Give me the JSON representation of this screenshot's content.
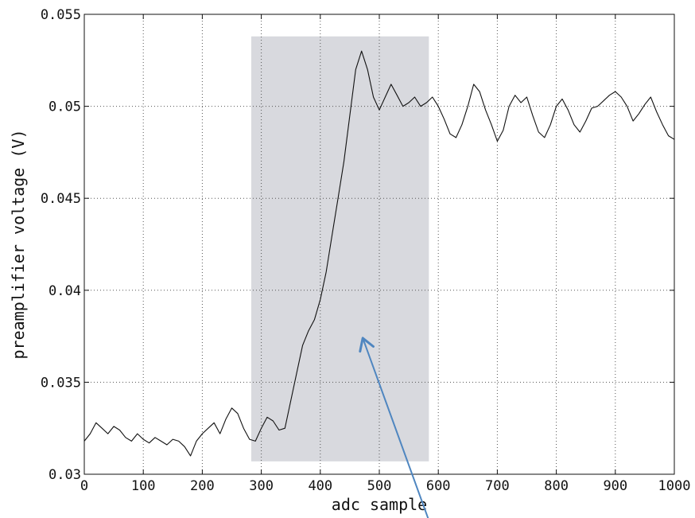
{
  "chart_data": {
    "type": "line",
    "title": "",
    "xlabel": "adc sample",
    "ylabel": "preamplifier voltage (V)",
    "xlim": [
      0,
      1000
    ],
    "ylim": [
      0.03,
      0.055
    ],
    "x_ticks": [
      0,
      100,
      200,
      300,
      400,
      500,
      600,
      700,
      800,
      900,
      1000
    ],
    "x_tick_labels": [
      "0",
      "100",
      "200",
      "300",
      "400",
      "500",
      "600",
      "700",
      "800",
      "900",
      "1000"
    ],
    "y_ticks": [
      0.03,
      0.035,
      0.04,
      0.045,
      0.05,
      0.055
    ],
    "y_tick_labels": [
      "0.03",
      "0.035",
      "0.04",
      "0.045",
      "0.05",
      "0.055"
    ],
    "grid": true,
    "grid_style": "dotted",
    "line_color": "#111111",
    "series": [
      {
        "x": [
          0,
          10,
          20,
          30,
          40,
          50,
          60,
          70,
          80,
          90,
          100,
          110,
          120,
          130,
          140,
          150,
          160,
          170,
          180,
          190,
          200,
          210,
          220,
          230,
          240,
          250,
          260,
          270,
          280,
          290,
          300,
          310,
          320,
          330,
          340,
          350,
          360,
          370,
          380,
          390,
          400,
          410,
          420,
          430,
          440,
          450,
          460,
          470,
          480,
          490,
          500,
          510,
          520,
          530,
          540,
          550,
          560,
          570,
          580,
          590,
          600,
          610,
          620,
          630,
          640,
          650,
          660,
          670,
          680,
          690,
          700,
          710,
          720,
          730,
          740,
          750,
          760,
          770,
          780,
          790,
          800,
          810,
          820,
          830,
          840,
          850,
          860,
          870,
          880,
          890,
          900,
          910,
          920,
          930,
          940,
          950,
          960,
          970,
          980,
          990,
          1000
        ],
        "y": [
          0.0318,
          0.0322,
          0.0328,
          0.0325,
          0.0322,
          0.0326,
          0.0324,
          0.032,
          0.0318,
          0.0322,
          0.0319,
          0.0317,
          0.032,
          0.0318,
          0.0316,
          0.0319,
          0.0318,
          0.0315,
          0.031,
          0.0318,
          0.0322,
          0.0325,
          0.0328,
          0.0322,
          0.033,
          0.0336,
          0.0333,
          0.0325,
          0.0319,
          0.0318,
          0.0325,
          0.0331,
          0.0329,
          0.0324,
          0.0325,
          0.034,
          0.0355,
          0.037,
          0.0378,
          0.0384,
          0.0395,
          0.041,
          0.043,
          0.045,
          0.047,
          0.0495,
          0.052,
          0.053,
          0.052,
          0.0505,
          0.0498,
          0.0505,
          0.0512,
          0.0506,
          0.05,
          0.0502,
          0.0505,
          0.05,
          0.0502,
          0.0505,
          0.05,
          0.0493,
          0.0485,
          0.0483,
          0.049,
          0.05,
          0.0512,
          0.0508,
          0.0498,
          0.049,
          0.0481,
          0.0487,
          0.05,
          0.0506,
          0.0502,
          0.0505,
          0.0495,
          0.0486,
          0.0483,
          0.049,
          0.05,
          0.0504,
          0.0498,
          0.049,
          0.0486,
          0.0492,
          0.0499,
          0.05,
          0.0503,
          0.0506,
          0.0508,
          0.0505,
          0.05,
          0.0492,
          0.0496,
          0.0501,
          0.0505,
          0.0497,
          0.049,
          0.0484,
          0.0482
        ]
      }
    ],
    "highlight_region": {
      "x_range": [
        283,
        584
      ],
      "y_range": [
        0.0307,
        0.0538
      ],
      "color": "#d8d9de"
    },
    "arrow_annotation": {
      "from": [
        585,
        0.0274
      ],
      "to": [
        472,
        0.0374
      ],
      "color": "#4f86c0"
    }
  }
}
